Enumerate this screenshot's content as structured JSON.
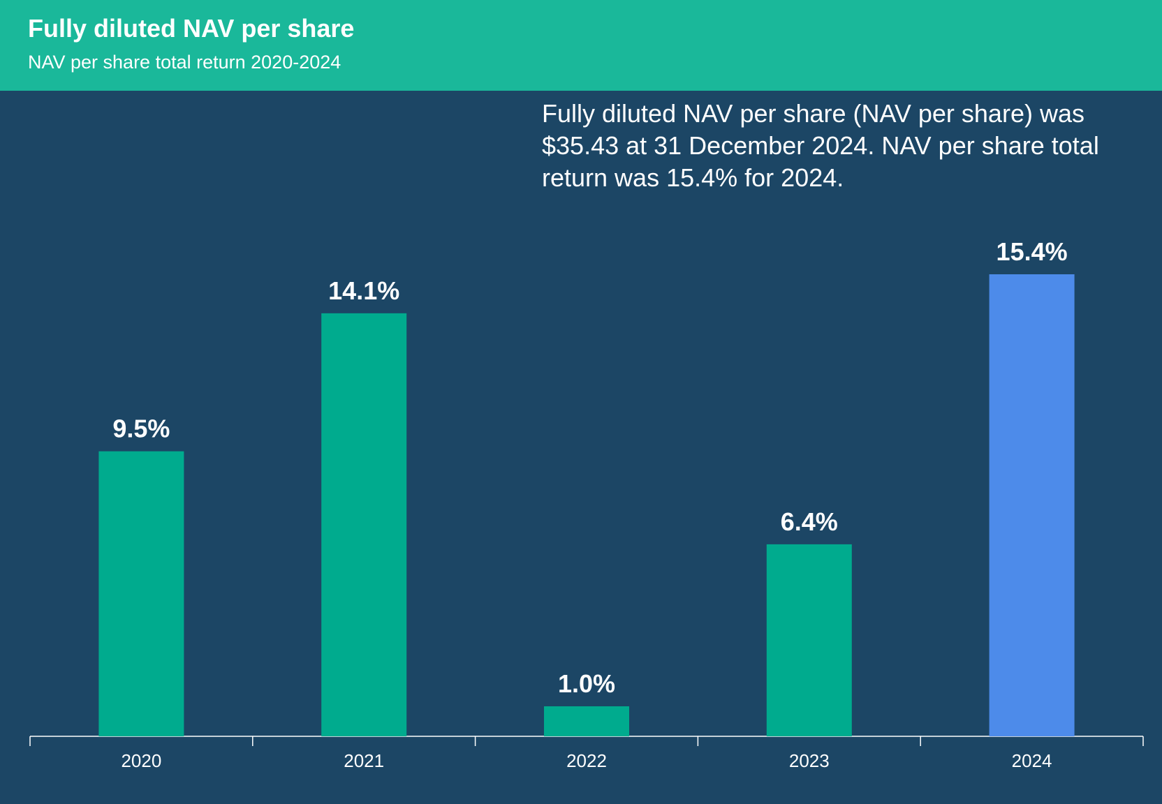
{
  "header": {
    "title": "Fully diluted NAV per share",
    "subtitle": "NAV per share total return 2020-2024"
  },
  "note": "Fully diluted NAV per share (NAV per share) was $35.43 at 31 December 2024. NAV per share total return was 15.4% for 2024.",
  "colors": {
    "header_bg": "#1ab89a",
    "background": "#1c4665",
    "bar": "#00ab8e",
    "bar_highlight": "#4d8bea",
    "axis": "#ffffff"
  },
  "chart_data": {
    "type": "bar",
    "title": "Fully diluted NAV per share",
    "subtitle": "NAV per share total return 2020-2024",
    "categories": [
      "2020",
      "2021",
      "2022",
      "2023",
      "2024"
    ],
    "values": [
      9.5,
      14.1,
      1.0,
      6.4,
      15.4
    ],
    "labels": [
      "9.5%",
      "14.1%",
      "1.0%",
      "6.4%",
      "15.4%"
    ],
    "highlight": "2024",
    "ylim": [
      0,
      15.4
    ],
    "xlabel": "",
    "ylabel": "",
    "grid": false,
    "legend": "none"
  }
}
